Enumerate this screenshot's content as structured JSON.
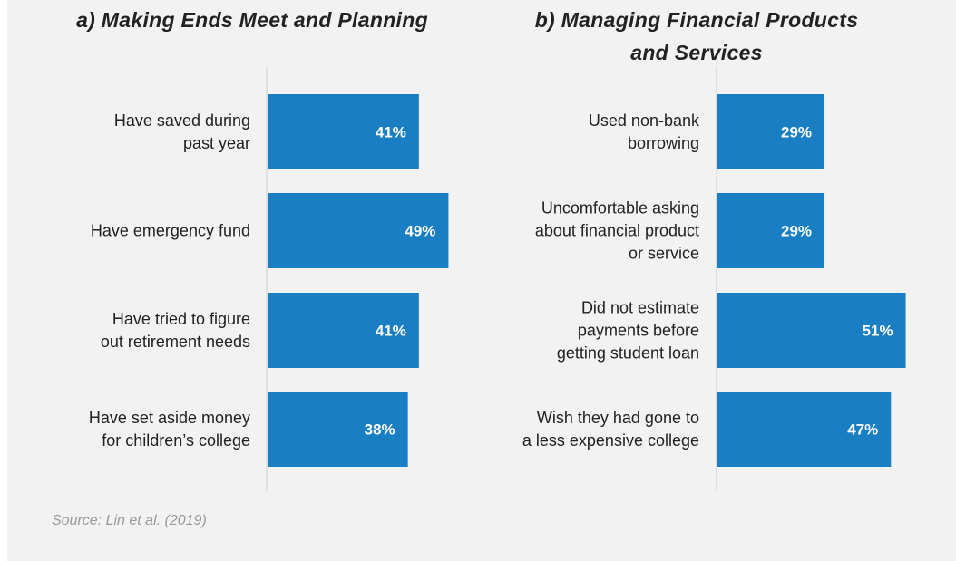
{
  "chart_data": [
    {
      "type": "bar",
      "orientation": "horizontal",
      "title": "a) Making Ends Meet and Planning",
      "categories": [
        [
          "Have saved during",
          "past year"
        ],
        [
          "Have emergency fund"
        ],
        [
          "Have tried to figure",
          "out retirement needs"
        ],
        [
          "Have set aside money",
          "for children’s college"
        ]
      ],
      "values": [
        41,
        49,
        41,
        38
      ],
      "value_labels": [
        "41%",
        "49%",
        "41%",
        "38%"
      ],
      "xlim": [
        0,
        100
      ],
      "grid": false,
      "bar_color": "#1a7ec2"
    },
    {
      "type": "bar",
      "orientation": "horizontal",
      "title": "b) Managing Financial Products\nand Services",
      "categories": [
        [
          "Used non-bank",
          "borrowing"
        ],
        [
          "Uncomfortable asking",
          "about financial product",
          "or service"
        ],
        [
          "Did not estimate",
          "payments before",
          "getting student loan"
        ],
        [
          "Wish they had gone to",
          "a less expensive college"
        ]
      ],
      "values": [
        29,
        29,
        51,
        47
      ],
      "value_labels": [
        "29%",
        "29%",
        "51%",
        "47%"
      ],
      "xlim": [
        0,
        100
      ],
      "grid": false,
      "bar_color": "#1a7ec2"
    }
  ],
  "source": "Source: Lin et al. (2019)"
}
